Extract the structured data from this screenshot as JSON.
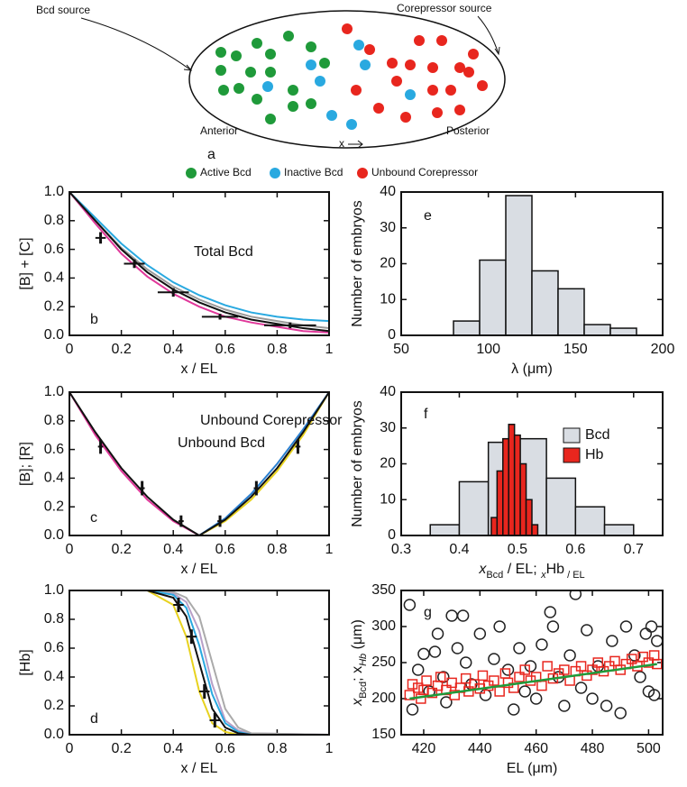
{
  "diagram": {
    "sources": [
      "Bcd source",
      "Corepressor source"
    ],
    "positions": [
      "Anterior",
      "Posterior"
    ],
    "axis": "x",
    "panel": "a",
    "legend": [
      "Active Bcd",
      "Inactive Bcd",
      "Unbound Corepressor"
    ]
  },
  "chart_data": [
    {
      "type": "line",
      "ylabel": "[B] + [C]",
      "xlabel": "x / EL",
      "annotations": [
        "Total Bcd",
        "b"
      ],
      "xlim": [
        0,
        1
      ],
      "xticks": [
        0,
        0.2,
        0.4,
        0.6,
        0.8,
        1
      ],
      "ylim": [
        0,
        1
      ],
      "yticks": [
        {
          "value": 0,
          "label": "0.0"
        },
        0.2,
        0.4,
        0.6,
        0.8,
        {
          "value": 1,
          "label": "1.0"
        }
      ],
      "x": [
        0,
        0.1,
        0.2,
        0.3,
        0.4,
        0.5,
        0.6,
        0.7,
        0.8,
        0.9,
        1
      ],
      "series": [
        {
          "color": "#e0389a",
          "values": [
            1,
            0.78,
            0.57,
            0.41,
            0.29,
            0.2,
            0.13,
            0.09,
            0.06,
            0.03,
            0.02
          ]
        },
        {
          "color": "#29a9e0",
          "values": [
            1,
            0.82,
            0.64,
            0.49,
            0.37,
            0.28,
            0.21,
            0.16,
            0.13,
            0.11,
            0.1
          ]
        },
        {
          "color": "#999999",
          "values": [
            1,
            0.8,
            0.61,
            0.46,
            0.34,
            0.25,
            0.18,
            0.13,
            0.1,
            0.07,
            0.05
          ]
        },
        {
          "color": "#111111",
          "values": [
            1,
            0.8,
            0.6,
            0.44,
            0.32,
            0.23,
            0.16,
            0.11,
            0.08,
            0.05,
            0.03
          ]
        }
      ],
      "errorbars": {
        "x": [
          0.12,
          0.25,
          0.4,
          0.58,
          0.85
        ],
        "values": [
          0.68,
          0.5,
          0.3,
          0.13,
          0.07
        ],
        "errors": [
          0.04,
          0.03,
          0.03,
          0.02,
          0.02
        ],
        "xerrors": [
          0.02,
          0.04,
          0.06,
          0.07,
          0.1
        ]
      }
    },
    {
      "type": "histogram",
      "ylabel": "Number of embryos",
      "xlabel": "λ (μm)",
      "annotations": [
        "e"
      ],
      "xlim": [
        50,
        200
      ],
      "xticks": [
        50,
        100,
        150,
        200
      ],
      "ylim": [
        0,
        40
      ],
      "yticks": [
        0,
        10,
        20,
        30,
        40
      ],
      "series": [
        {
          "color": "#d9dde3",
          "bins": [
            80,
            95,
            110,
            125,
            140,
            155,
            170,
            185
          ],
          "values": [
            4,
            21,
            39,
            18,
            13,
            3,
            2
          ]
        }
      ]
    },
    {
      "type": "line",
      "ylabel": "[B]; [R]",
      "xlabel": "x / EL",
      "annotations": [
        "Unbound Corepressor",
        "Unbound Bcd",
        "c"
      ],
      "xlim": [
        0,
        1
      ],
      "xticks": [
        0,
        0.2,
        0.4,
        0.6,
        0.8,
        1
      ],
      "ylim": [
        0,
        1
      ],
      "yticks": [
        {
          "value": 0,
          "label": "0.0"
        },
        0.2,
        0.4,
        0.6,
        0.8,
        {
          "value": 1,
          "label": "1.0"
        }
      ],
      "x": [
        0,
        0.1,
        0.2,
        0.3,
        0.4,
        0.5,
        0.6,
        0.7,
        0.8,
        0.9,
        1
      ],
      "series": [
        {
          "color": "#e0389a",
          "values": [
            1,
            0.7,
            0.45,
            0.25,
            0.1,
            0,
            null,
            null,
            null,
            null,
            null
          ]
        },
        {
          "color": "#111111",
          "values": [
            1,
            0.72,
            0.47,
            0.27,
            0.11,
            0,
            null,
            null,
            null,
            null,
            null
          ]
        },
        {
          "color": "#e8d21e",
          "values": [
            null,
            null,
            null,
            null,
            null,
            0,
            0.1,
            0.25,
            0.45,
            0.7,
            1
          ]
        },
        {
          "color": "#2a7fd0",
          "values": [
            null,
            null,
            null,
            null,
            null,
            0,
            0.12,
            0.29,
            0.5,
            0.74,
            1
          ]
        },
        {
          "color": "#111111",
          "values": [
            null,
            null,
            null,
            null,
            null,
            0,
            0.11,
            0.27,
            0.47,
            0.72,
            1
          ]
        }
      ],
      "errorbars": {
        "x": [
          0.12,
          0.28,
          0.43,
          0.58,
          0.72,
          0.88
        ],
        "values": [
          0.62,
          0.33,
          0.1,
          0.1,
          0.33,
          0.62
        ],
        "errors": [
          0.05,
          0.05,
          0.04,
          0.04,
          0.05,
          0.05
        ],
        "xerrors": [
          0.01,
          0.01,
          0.01,
          0.01,
          0.01,
          0.01
        ]
      }
    },
    {
      "type": "histogram",
      "ylabel": "Number of embryos",
      "xlabel": [
        "x",
        "Bcd",
        " / EL; ",
        "x",
        "Hb",
        " / EL"
      ],
      "annotations": [
        "f"
      ],
      "xlim": [
        0.3,
        0.75
      ],
      "xticks": [
        0.3,
        0.4,
        0.5,
        0.6,
        0.7
      ],
      "ylim": [
        0,
        40
      ],
      "yticks": [
        0,
        10,
        20,
        30,
        40
      ],
      "legend": "upper right",
      "series": [
        {
          "name": "Bcd",
          "color": "#d9dde3",
          "bins": [
            0.35,
            0.4,
            0.45,
            0.5,
            0.55,
            0.6,
            0.65,
            0.7
          ],
          "values": [
            3,
            15,
            26,
            27,
            16,
            8,
            3
          ]
        },
        {
          "name": "Hb",
          "color": "#e8261e",
          "bins": [
            0.455,
            0.465,
            0.475,
            0.485,
            0.495,
            0.505,
            0.515,
            0.525,
            0.535
          ],
          "values": [
            5,
            18,
            27,
            31,
            28,
            20,
            10,
            3
          ]
        }
      ]
    },
    {
      "type": "line",
      "ylabel": "[Hb]",
      "xlabel": "x / EL",
      "annotations": [
        "d"
      ],
      "xlim": [
        0,
        1
      ],
      "xticks": [
        0,
        0.2,
        0.4,
        0.6,
        0.8,
        1
      ],
      "ylim": [
        0,
        1
      ],
      "yticks": [
        {
          "value": 0,
          "label": "0.0"
        },
        0.2,
        0.4,
        0.6,
        0.8,
        {
          "value": 1,
          "label": "1.0"
        }
      ],
      "x": [
        0,
        0.3,
        0.4,
        0.45,
        0.5,
        0.55,
        0.6,
        0.65,
        0.7,
        1
      ],
      "series": [
        {
          "color": "#e8d21e",
          "values": [
            1,
            1,
            0.9,
            0.68,
            0.3,
            0.08,
            0.02,
            0,
            0,
            0
          ]
        },
        {
          "color": "#b8a0c8",
          "values": [
            1,
            1,
            0.98,
            0.92,
            0.72,
            0.35,
            0.1,
            0.03,
            0.01,
            0
          ]
        },
        {
          "color": "#aaaaaa",
          "values": [
            1,
            1,
            0.99,
            0.95,
            0.82,
            0.5,
            0.18,
            0.05,
            0.01,
            0
          ]
        },
        {
          "color": "#29a9e0",
          "values": [
            1,
            1,
            0.97,
            0.88,
            0.62,
            0.28,
            0.08,
            0.02,
            0,
            0
          ]
        },
        {
          "color": "#111111",
          "values": [
            1,
            1,
            0.95,
            0.82,
            0.5,
            0.18,
            0.05,
            0.01,
            0,
            0
          ]
        }
      ],
      "errorbars": {
        "x": [
          0.42,
          0.47,
          0.52,
          0.56
        ],
        "values": [
          0.9,
          0.68,
          0.3,
          0.1
        ],
        "errors": [
          0.05,
          0.05,
          0.05,
          0.05
        ],
        "xerrors": [
          0.02,
          0.02,
          0.02,
          0.02
        ]
      }
    },
    {
      "type": "scatter",
      "ylabel": [
        "x",
        "Bcd",
        "; x",
        "Hb",
        " (μm)"
      ],
      "xlabel": "EL (μm)",
      "annotations": [
        "g"
      ],
      "xlim": [
        412,
        505
      ],
      "xticks": [
        420,
        440,
        460,
        480,
        500
      ],
      "ylim": [
        150,
        350
      ],
      "yticks": [
        150,
        200,
        250,
        300,
        350
      ],
      "series": [
        {
          "marker": "circle",
          "color": "#222222",
          "x": [
            415,
            416,
            418,
            420,
            422,
            424,
            425,
            427,
            428,
            430,
            432,
            434,
            435,
            437,
            440,
            442,
            445,
            447,
            450,
            452,
            454,
            456,
            458,
            460,
            462,
            465,
            466,
            468,
            470,
            472,
            474,
            476,
            478,
            480,
            482,
            485,
            487,
            490,
            492,
            495,
            497,
            499,
            500,
            501,
            502,
            503
          ],
          "values": [
            330,
            185,
            240,
            262,
            210,
            265,
            290,
            230,
            195,
            315,
            270,
            315,
            250,
            220,
            290,
            205,
            255,
            300,
            240,
            185,
            270,
            210,
            245,
            200,
            275,
            320,
            300,
            230,
            190,
            260,
            345,
            215,
            295,
            200,
            245,
            190,
            280,
            180,
            300,
            260,
            230,
            290,
            210,
            300,
            205,
            280
          ]
        },
        {
          "marker": "square",
          "color": "#e8261e",
          "x": [
            415,
            416,
            418,
            419,
            420,
            421,
            423,
            425,
            426,
            428,
            430,
            431,
            433,
            435,
            436,
            438,
            440,
            441,
            443,
            445,
            447,
            449,
            450,
            452,
            454,
            456,
            458,
            460,
            462,
            464,
            466,
            468,
            470,
            472,
            474,
            476,
            478,
            480,
            482,
            484,
            486,
            488,
            490,
            492,
            494,
            496,
            498,
            500,
            502,
            503
          ],
          "values": [
            205,
            220,
            215,
            200,
            212,
            225,
            208,
            218,
            230,
            212,
            222,
            205,
            215,
            228,
            210,
            220,
            214,
            232,
            218,
            225,
            210,
            235,
            222,
            215,
            230,
            240,
            225,
            230,
            218,
            245,
            228,
            235,
            240,
            225,
            238,
            245,
            232,
            240,
            250,
            238,
            245,
            252,
            240,
            248,
            255,
            245,
            258,
            250,
            260,
            248
          ]
        }
      ],
      "lines": [
        {
          "color": "#1f9a3a",
          "x": [
            415,
            503
          ],
          "values": [
            200,
            248
          ]
        }
      ]
    }
  ]
}
